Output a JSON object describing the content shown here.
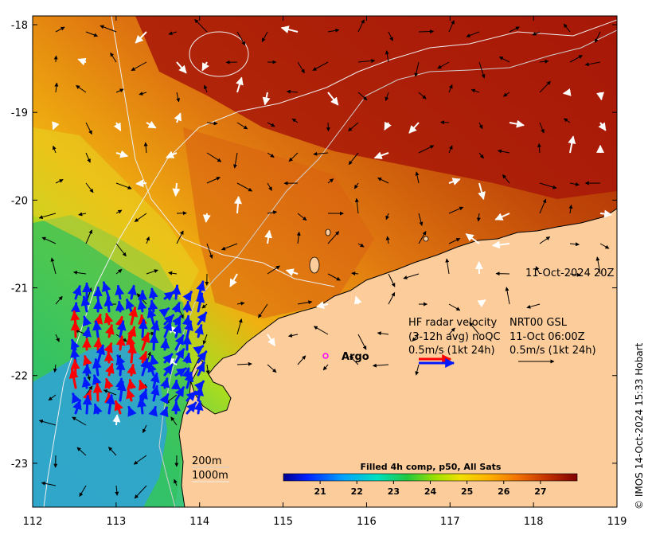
{
  "axes": {
    "lon_ticks": [
      "112",
      "113",
      "114",
      "115",
      "116",
      "117",
      "118",
      "119"
    ],
    "lat_ticks": [
      "-18",
      "-19",
      "-20",
      "-21",
      "-22",
      "-23"
    ],
    "lon_range": [
      112,
      119
    ],
    "lat_range": [
      -23.5,
      -17.9
    ]
  },
  "annotations": {
    "datetime": "11-Oct-2024 20Z",
    "hf_title_left": "HF radar velocity",
    "hf_avg": "(3-12h avg) noQC",
    "hf_scale_left": "0.5m/s (1kt 24h)",
    "hf_title_right": "NRT00 GSL",
    "hf_time": "11-Oct 06:00Z",
    "hf_scale_right": "0.5m/s (1kt 24h)",
    "argo_label": "Argo",
    "contour_200": "200m",
    "contour_1000": "1000m"
  },
  "colorbar": {
    "title": "Filled 4h comp, p50, All Sats",
    "ticks": [
      "21",
      "22",
      "23",
      "24",
      "25",
      "26",
      "27"
    ],
    "range": [
      20,
      28
    ]
  },
  "credit": "© IMOS 14-Oct-2024 15:33 Hobart",
  "colors": {
    "land": "#fccc9a",
    "hf_radar_blue": "#0019ff",
    "hf_radar_red": "#ff0000",
    "argo_marker": "#ff00ff"
  },
  "icons": {
    "argo_marker": "circle-outline",
    "velocity_arrow": "arrow"
  }
}
